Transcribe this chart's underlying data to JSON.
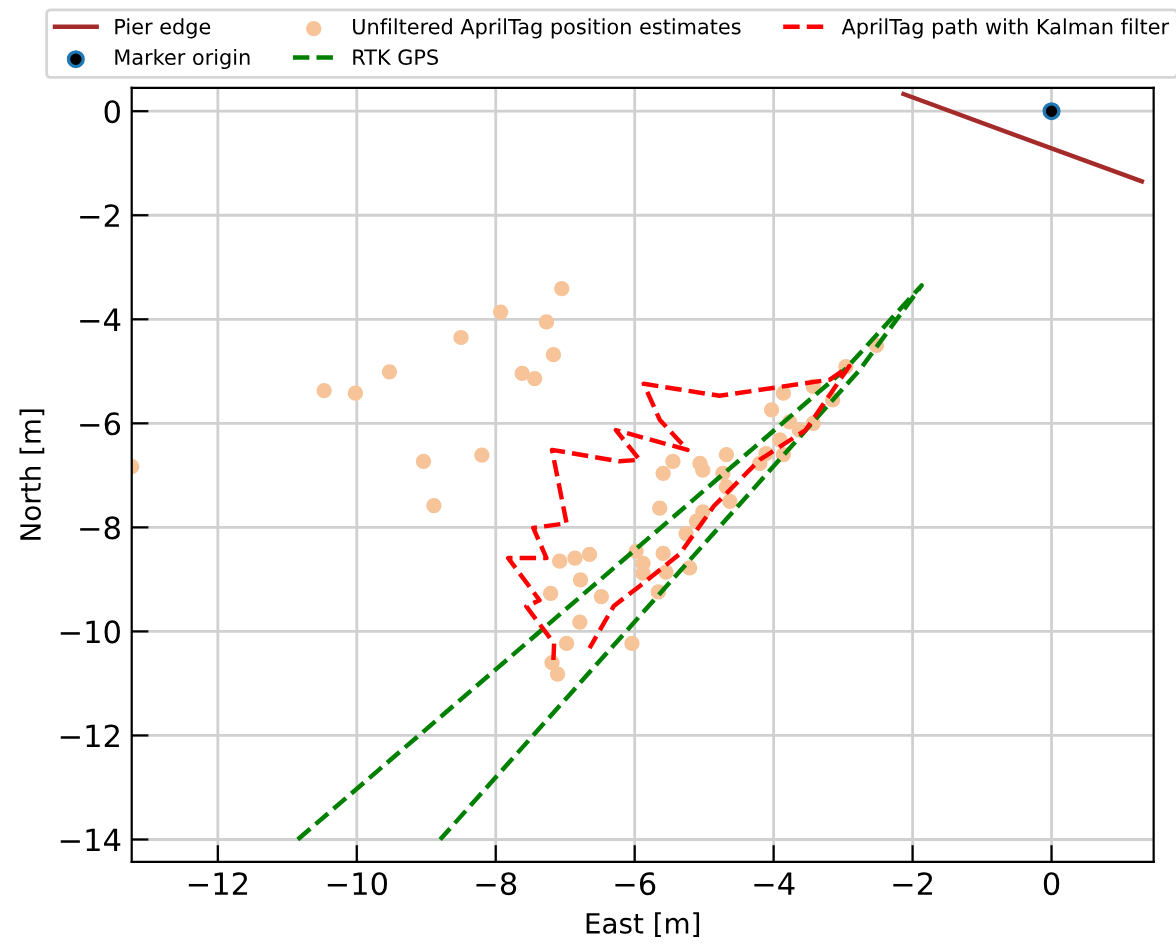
{
  "chart_data": {
    "type": "line",
    "xlabel": "East [m]",
    "ylabel": "North [m]",
    "xlim": [
      -13.24,
      1.47
    ],
    "ylim": [
      -14.43,
      0.45
    ],
    "xticks": [
      -12,
      -10,
      -8,
      -6,
      -4,
      -2,
      0
    ],
    "yticks": [
      0,
      -2,
      -4,
      -6,
      -8,
      -10,
      -12,
      -14
    ],
    "grid": true,
    "legend": "top",
    "series": [
      {
        "name": "Pier edge",
        "color": "#a52a2a",
        "line_style": "solid",
        "x": [
          -2.13,
          1.3
        ],
        "values": [
          0.33,
          -1.35
        ]
      },
      {
        "name": "Marker origin",
        "type": "scatter",
        "color": "#000000",
        "marker": "circle",
        "x": [
          0
        ],
        "values": [
          0
        ]
      },
      {
        "name": "Unfiltered AprilTag position estimates",
        "type": "scatter",
        "color": "#f7c49a",
        "marker": "circle",
        "x": [
          -7.05,
          -7.93,
          -7.27,
          -8.5,
          -7.17,
          -9.53,
          -7.62,
          -7.44,
          -10.47,
          -10.02,
          -13.24,
          -9.04,
          -8.2,
          -8.89,
          -7.08,
          -6.86,
          -6.65,
          -6.78,
          -7.21,
          -6.48,
          -6.79,
          -6.98,
          -7.19,
          -7.11,
          -2.52,
          -2.96,
          -3.43,
          -3.86,
          -4.03,
          -3.15,
          -3.77,
          -3.43,
          -3.63,
          -3.91,
          -4.11,
          -3.86,
          -4.68,
          -4.2,
          -5.45,
          -5.59,
          -5.06,
          -5.02,
          -4.73,
          -4.68,
          -4.63,
          -5.64,
          -5.02,
          -5.11,
          -5.26,
          -5.98,
          -5.59,
          -5.88,
          -5.55,
          -5.88,
          -5.21,
          -5.66,
          -6.04
        ],
        "values": [
          -3.41,
          -3.86,
          -4.05,
          -4.35,
          -4.68,
          -5.01,
          -5.04,
          -5.14,
          -5.37,
          -5.42,
          -6.83,
          -6.73,
          -6.61,
          -7.58,
          -8.65,
          -8.59,
          -8.52,
          -9.01,
          -9.27,
          -9.33,
          -9.82,
          -10.23,
          -10.6,
          -10.82,
          -4.5,
          -4.91,
          -5.29,
          -5.42,
          -5.74,
          -5.55,
          -5.97,
          -6.0,
          -6.13,
          -6.32,
          -6.58,
          -6.6,
          -6.6,
          -6.77,
          -6.73,
          -6.96,
          -6.77,
          -6.9,
          -6.96,
          -7.22,
          -7.5,
          -7.63,
          -7.7,
          -7.88,
          -8.12,
          -8.46,
          -8.5,
          -8.69,
          -8.86,
          -8.88,
          -8.78,
          -9.24,
          -10.23
        ]
      },
      {
        "name": "RTK GPS",
        "color": "#008000",
        "line_style": "dashed",
        "x": [
          -10.85,
          -2.96,
          -1.87,
          -2.76,
          -8.8
        ],
        "values": [
          -14.0,
          -4.95,
          -3.35,
          -4.97,
          -14.0
        ]
      },
      {
        "name": "AprilTag path with Kalman filter",
        "color": "#ff0000",
        "line_style": "dashed",
        "x": [
          -7.17,
          -7.16,
          -7.56,
          -7.37,
          -7.82,
          -7.27,
          -7.46,
          -6.98,
          -7.19,
          -6.22,
          -5.93,
          -6.27,
          -5.24,
          -5.64,
          -5.87,
          -4.78,
          -3.19,
          -2.91,
          -3.54,
          -4.2,
          -4.86,
          -5.35,
          -5.93,
          -6.3,
          -6.65
        ],
        "values": [
          -10.55,
          -10.23,
          -9.52,
          -9.4,
          -8.59,
          -8.59,
          -8.01,
          -7.92,
          -6.51,
          -6.73,
          -6.7,
          -6.13,
          -6.51,
          -5.93,
          -5.24,
          -5.47,
          -5.16,
          -4.9,
          -6.13,
          -6.7,
          -7.59,
          -8.51,
          -9.13,
          -9.51,
          -10.32
        ]
      }
    ]
  }
}
